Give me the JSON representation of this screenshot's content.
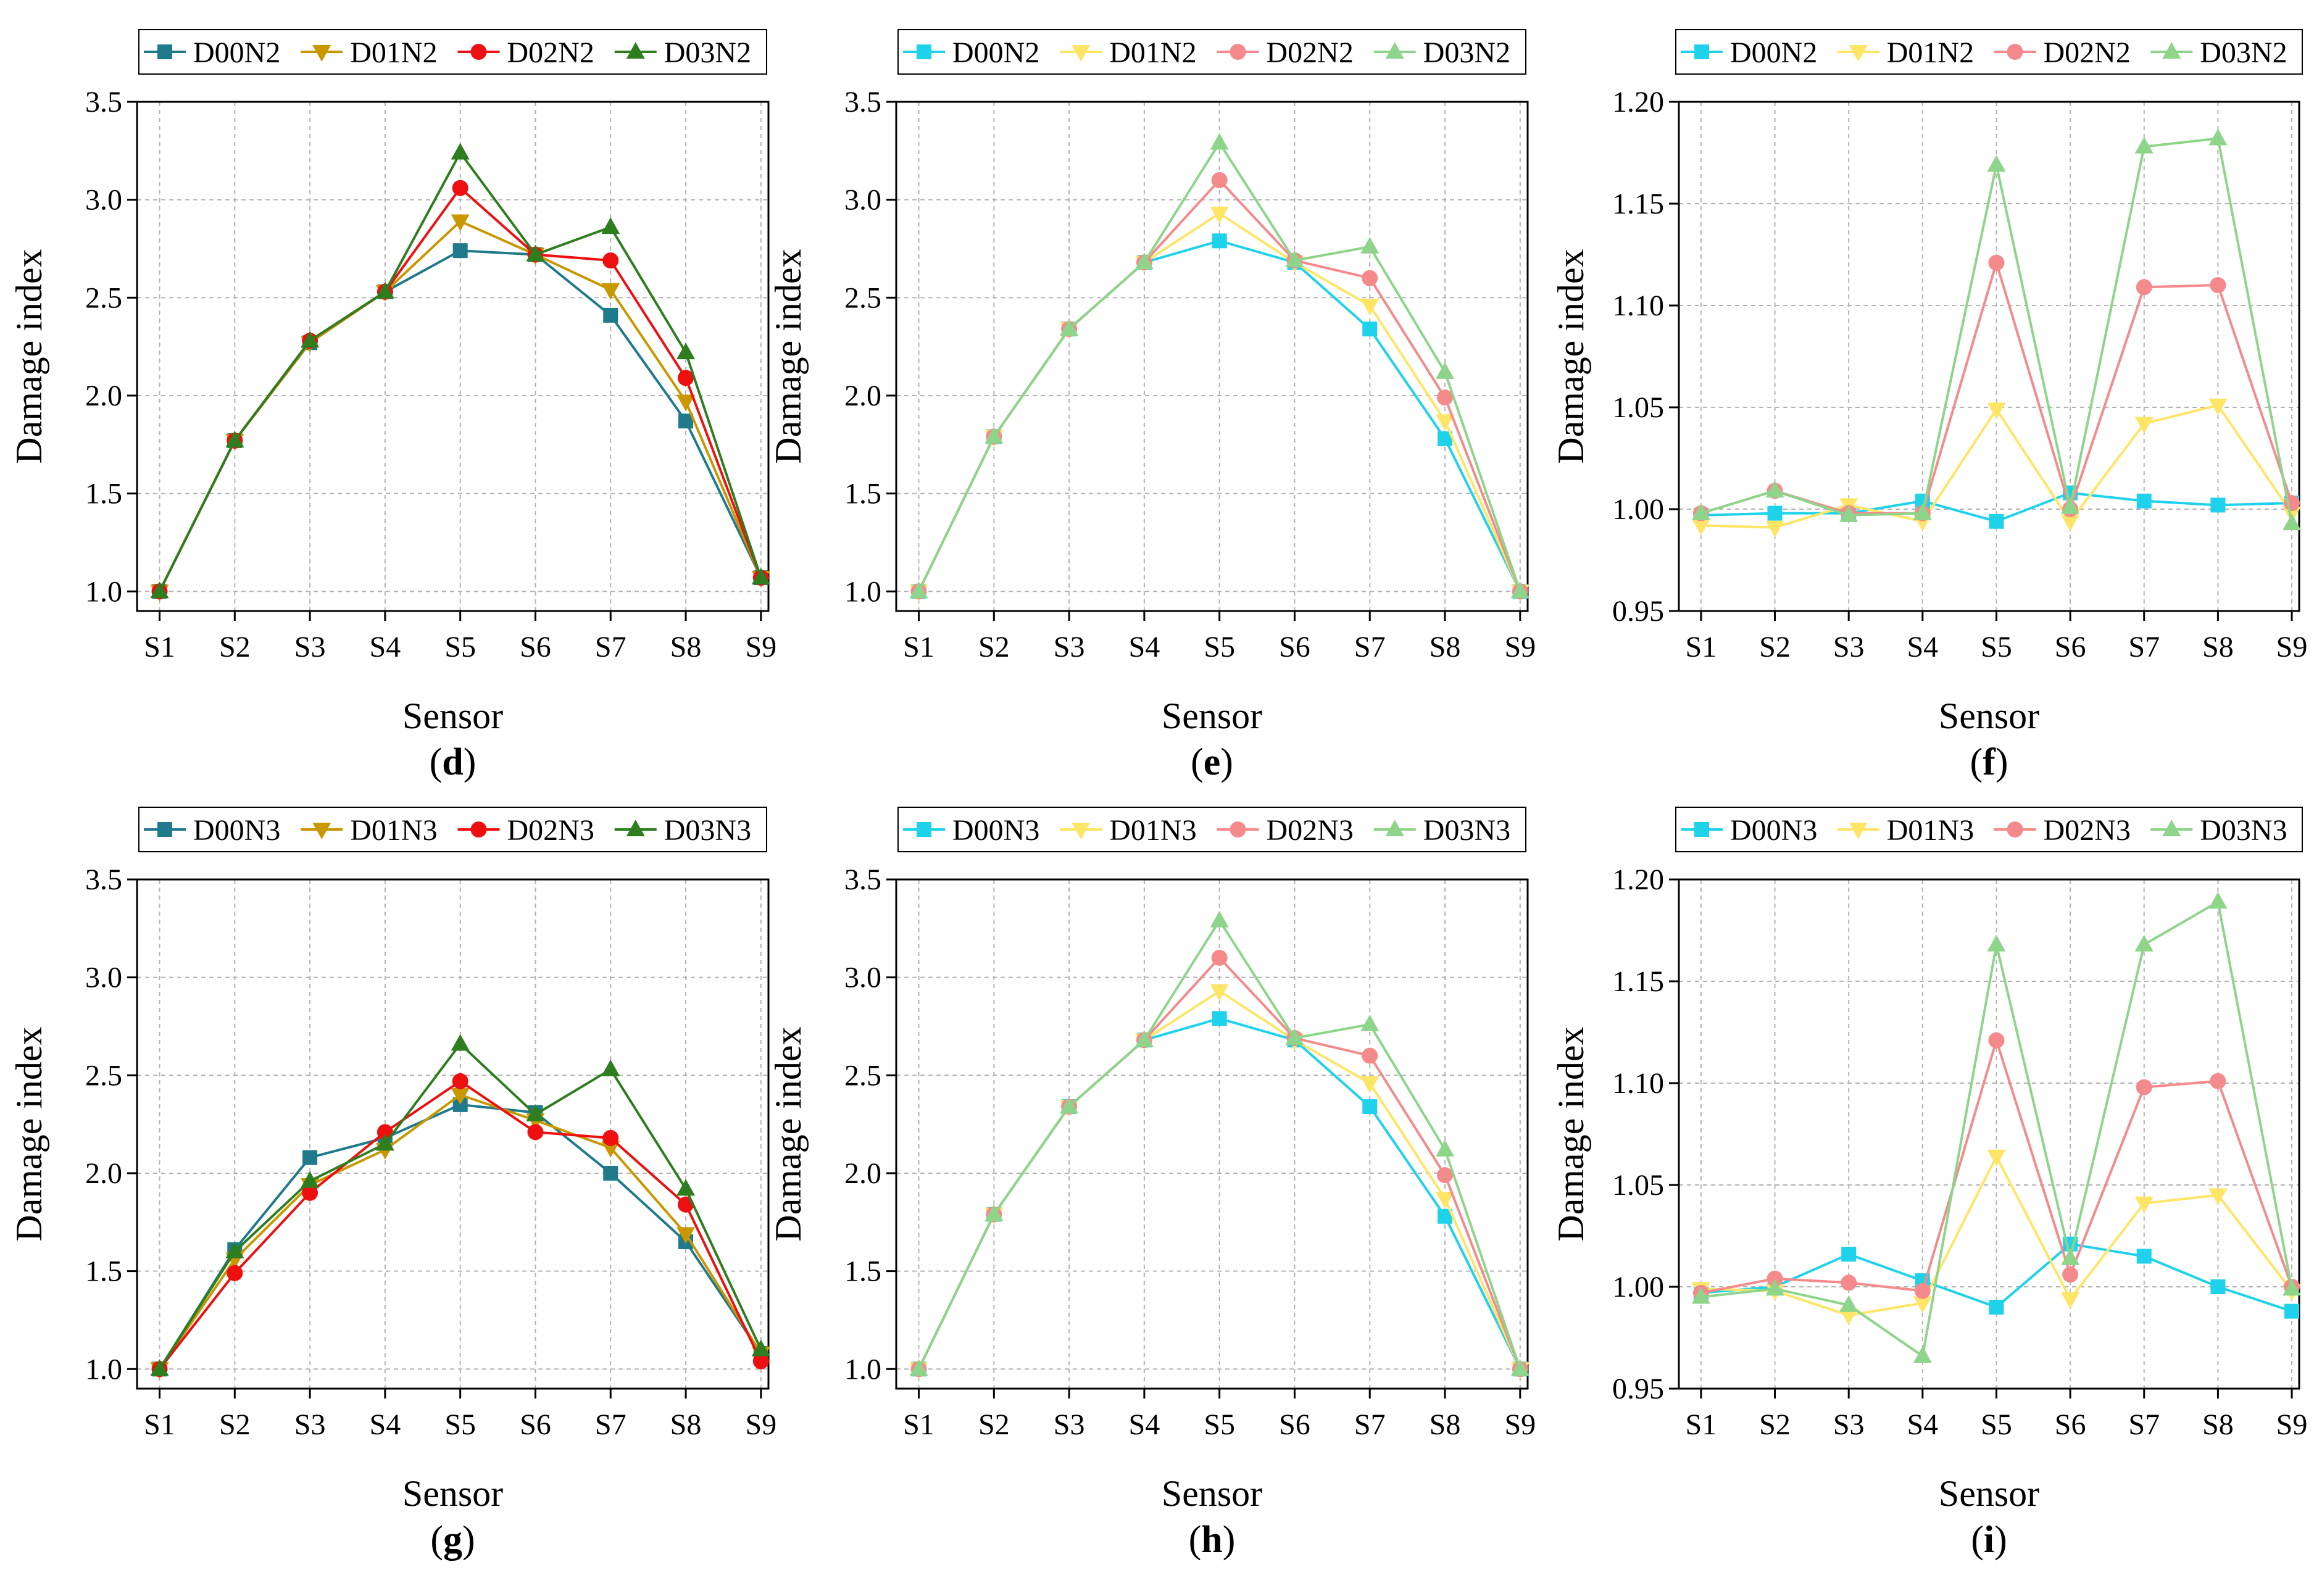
{
  "figure": {
    "sensor_axis_label": "Sensor",
    "damage_axis_label": "Damage index"
  },
  "chart_data": [
    {
      "id": "d",
      "panel_label": "d",
      "type": "line",
      "palette": "dark",
      "categories": [
        "S1",
        "S2",
        "S3",
        "S4",
        "S5",
        "S6",
        "S7",
        "S8",
        "S9"
      ],
      "xlabel": "Sensor",
      "ylabel": "Damage index",
      "ylim": [
        0.9,
        3.5
      ],
      "yticks": [
        1.0,
        1.5,
        2.0,
        2.5,
        3.0,
        3.5
      ],
      "ytick_format": 1,
      "series": [
        {
          "name": "D00N2",
          "marker": "square",
          "values": [
            1.0,
            1.77,
            2.27,
            2.53,
            2.74,
            2.72,
            2.41,
            1.87,
            1.07
          ]
        },
        {
          "name": "D01N2",
          "marker": "triangle-down",
          "values": [
            1.0,
            1.77,
            2.27,
            2.53,
            2.89,
            2.72,
            2.54,
            1.97,
            1.07
          ]
        },
        {
          "name": "D02N2",
          "marker": "circle",
          "values": [
            1.0,
            1.77,
            2.28,
            2.53,
            3.06,
            2.72,
            2.69,
            2.09,
            1.07
          ]
        },
        {
          "name": "D03N2",
          "marker": "triangle-up",
          "values": [
            1.0,
            1.77,
            2.28,
            2.53,
            3.24,
            2.72,
            2.86,
            2.22,
            1.07
          ]
        }
      ]
    },
    {
      "id": "e",
      "panel_label": "e",
      "type": "line",
      "palette": "light",
      "categories": [
        "S1",
        "S2",
        "S3",
        "S4",
        "S5",
        "S6",
        "S7",
        "S8",
        "S9"
      ],
      "xlabel": "Sensor",
      "ylabel": "Damage index",
      "ylim": [
        0.9,
        3.5
      ],
      "yticks": [
        1.0,
        1.5,
        2.0,
        2.5,
        3.0,
        3.5
      ],
      "ytick_format": 1,
      "series": [
        {
          "name": "D00N2",
          "marker": "square",
          "values": [
            1.0,
            1.79,
            2.34,
            2.68,
            2.79,
            2.68,
            2.34,
            1.78,
            1.0
          ]
        },
        {
          "name": "D01N2",
          "marker": "triangle-down",
          "values": [
            1.0,
            1.79,
            2.34,
            2.68,
            2.93,
            2.68,
            2.46,
            1.87,
            1.0
          ]
        },
        {
          "name": "D02N2",
          "marker": "circle",
          "values": [
            1.0,
            1.79,
            2.34,
            2.68,
            3.1,
            2.69,
            2.6,
            1.99,
            1.0
          ]
        },
        {
          "name": "D03N2",
          "marker": "triangle-up",
          "values": [
            1.0,
            1.79,
            2.34,
            2.68,
            3.29,
            2.69,
            2.76,
            2.12,
            1.0
          ]
        }
      ]
    },
    {
      "id": "f",
      "panel_label": "f",
      "type": "line",
      "palette": "light",
      "categories": [
        "S1",
        "S2",
        "S3",
        "S4",
        "S5",
        "S6",
        "S7",
        "S8",
        "S9"
      ],
      "xlabel": "Sensor",
      "ylabel": "Damage index",
      "ylim": [
        0.95,
        1.2
      ],
      "yticks": [
        0.95,
        1.0,
        1.05,
        1.1,
        1.15,
        1.2
      ],
      "ytick_format": 2,
      "series": [
        {
          "name": "D00N2",
          "marker": "square",
          "values": [
            0.997,
            0.998,
            0.998,
            1.004,
            0.994,
            1.008,
            1.004,
            1.002,
            1.003
          ]
        },
        {
          "name": "D01N2",
          "marker": "triangle-down",
          "values": [
            0.992,
            0.991,
            1.002,
            0.994,
            1.049,
            0.994,
            1.042,
            1.051,
            0.998
          ]
        },
        {
          "name": "D02N2",
          "marker": "circle",
          "values": [
            0.998,
            1.009,
            0.998,
            0.998,
            1.121,
            1.0,
            1.109,
            1.11,
            1.003
          ]
        },
        {
          "name": "D03N2",
          "marker": "triangle-up",
          "values": [
            0.998,
            1.009,
            0.997,
            0.998,
            1.169,
            1.001,
            1.178,
            1.182,
            0.993
          ]
        }
      ]
    },
    {
      "id": "g",
      "panel_label": "g",
      "type": "line",
      "palette": "dark",
      "categories": [
        "S1",
        "S2",
        "S3",
        "S4",
        "S5",
        "S6",
        "S7",
        "S8",
        "S9"
      ],
      "xlabel": "Sensor",
      "ylabel": "Damage index",
      "ylim": [
        0.9,
        3.5
      ],
      "yticks": [
        1.0,
        1.5,
        2.0,
        2.5,
        3.0,
        3.5
      ],
      "ytick_format": 1,
      "series": [
        {
          "name": "D00N3",
          "marker": "square",
          "values": [
            1.0,
            1.61,
            2.08,
            2.18,
            2.35,
            2.31,
            2.0,
            1.65,
            1.08
          ]
        },
        {
          "name": "D01N3",
          "marker": "triangle-down",
          "values": [
            1.0,
            1.56,
            1.94,
            2.12,
            2.4,
            2.27,
            2.13,
            1.69,
            1.08
          ]
        },
        {
          "name": "D02N3",
          "marker": "circle",
          "values": [
            1.0,
            1.49,
            1.9,
            2.21,
            2.47,
            2.21,
            2.18,
            1.84,
            1.04
          ]
        },
        {
          "name": "D03N3",
          "marker": "triangle-up",
          "values": [
            1.0,
            1.6,
            1.96,
            2.15,
            2.66,
            2.3,
            2.53,
            1.92,
            1.1
          ]
        }
      ]
    },
    {
      "id": "h",
      "panel_label": "h",
      "type": "line",
      "palette": "light",
      "categories": [
        "S1",
        "S2",
        "S3",
        "S4",
        "S5",
        "S6",
        "S7",
        "S8",
        "S9"
      ],
      "xlabel": "Sensor",
      "ylabel": "Damage index",
      "ylim": [
        0.9,
        3.5
      ],
      "yticks": [
        1.0,
        1.5,
        2.0,
        2.5,
        3.0,
        3.5
      ],
      "ytick_format": 1,
      "series": [
        {
          "name": "D00N3",
          "marker": "square",
          "values": [
            1.0,
            1.79,
            2.34,
            2.68,
            2.79,
            2.68,
            2.34,
            1.78,
            1.0
          ]
        },
        {
          "name": "D01N3",
          "marker": "triangle-down",
          "values": [
            1.0,
            1.79,
            2.34,
            2.68,
            2.93,
            2.68,
            2.46,
            1.87,
            1.0
          ]
        },
        {
          "name": "D02N3",
          "marker": "circle",
          "values": [
            1.0,
            1.79,
            2.34,
            2.68,
            3.1,
            2.69,
            2.6,
            1.99,
            1.0
          ]
        },
        {
          "name": "D03N3",
          "marker": "triangle-up",
          "values": [
            1.0,
            1.79,
            2.34,
            2.68,
            3.29,
            2.69,
            2.76,
            2.12,
            1.0
          ]
        }
      ]
    },
    {
      "id": "i",
      "panel_label": "i",
      "type": "line",
      "palette": "light",
      "categories": [
        "S1",
        "S2",
        "S3",
        "S4",
        "S5",
        "S6",
        "S7",
        "S8",
        "S9"
      ],
      "xlabel": "Sensor",
      "ylabel": "Damage index",
      "ylim": [
        0.95,
        1.2
      ],
      "yticks": [
        0.95,
        1.0,
        1.05,
        1.1,
        1.15,
        1.2
      ],
      "ytick_format": 2,
      "series": [
        {
          "name": "D00N3",
          "marker": "square",
          "values": [
            0.997,
            1.0,
            1.016,
            1.003,
            0.99,
            1.021,
            1.015,
            1.0,
            0.988
          ]
        },
        {
          "name": "D01N3",
          "marker": "triangle-down",
          "values": [
            0.999,
            0.998,
            0.986,
            0.992,
            1.064,
            0.994,
            1.041,
            1.045,
            0.998
          ]
        },
        {
          "name": "D02N3",
          "marker": "circle",
          "values": [
            0.997,
            1.004,
            1.002,
            0.998,
            1.121,
            1.006,
            1.098,
            1.101,
            1.0
          ]
        },
        {
          "name": "D03N3",
          "marker": "triangle-up",
          "values": [
            0.995,
            0.999,
            0.991,
            0.966,
            1.168,
            1.014,
            1.168,
            1.189,
            0.999
          ]
        }
      ]
    }
  ],
  "palettes": {
    "dark": {
      "square": "#1f7a8c",
      "triangle-down": "#c99700",
      "circle": "#ee1010",
      "triangle-up": "#2e7d1e"
    },
    "light": {
      "square": "#1fd2ec",
      "triangle-down": "#ffe566",
      "circle": "#f58a8c",
      "triangle-up": "#8fd48b"
    }
  }
}
